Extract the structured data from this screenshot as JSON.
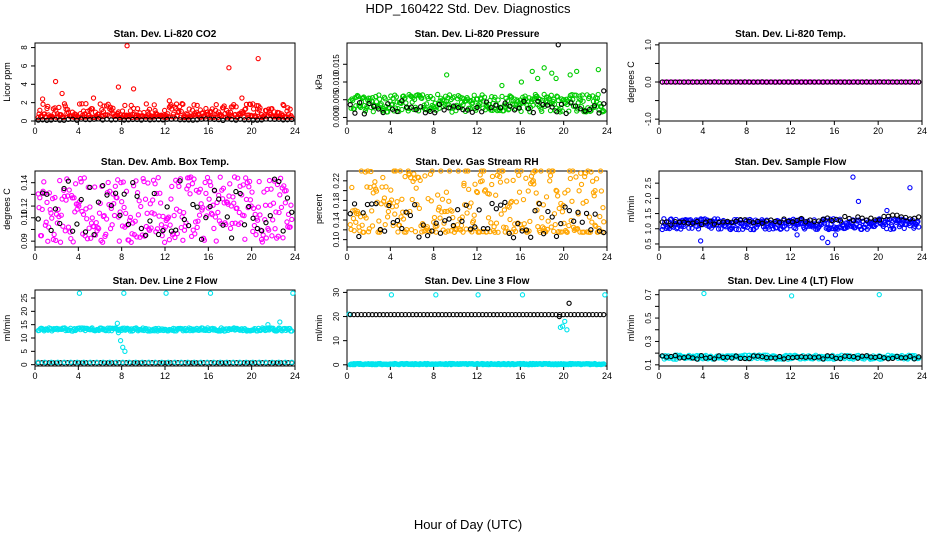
{
  "page": {
    "title": "HDP_160422  Std. Dev. Diagnostics",
    "xlabel": "Hour of Day (UTC)"
  },
  "chart_data": [
    {
      "type": "scatter",
      "title": "Stan. Dev. Li-820 CO2",
      "ylabel": "Licor ppm",
      "xlim": [
        0,
        24
      ],
      "ylim": [
        0,
        8.5
      ],
      "xticks": [
        0,
        4,
        8,
        12,
        16,
        20,
        24
      ],
      "yticks": [
        0,
        2,
        4,
        6,
        8
      ],
      "ytick_labels": [
        "0",
        "2",
        "4",
        "6",
        "8"
      ],
      "series": [
        {
          "color": "#ff0000",
          "base": 0.6,
          "noise": 0.5,
          "mode": "skewed",
          "count": 320,
          "points": [
            [
              1.9,
              4.3
            ],
            [
              8.5,
              8.2
            ],
            [
              17.9,
              5.8
            ],
            [
              20.6,
              6.8
            ],
            [
              0.7,
              2.4
            ],
            [
              2.5,
              3.0
            ],
            [
              9.1,
              3.5
            ],
            [
              12.4,
              2.2
            ],
            [
              19.1,
              2.5
            ],
            [
              22.9,
              1.8
            ],
            [
              7.7,
              3.7
            ],
            [
              5.4,
              2.5
            ]
          ]
        },
        {
          "color": "#000000",
          "base": 0.15,
          "noise": 0.08,
          "mode": "uniform",
          "count": 60,
          "points": []
        }
      ]
    },
    {
      "type": "scatter",
      "title": "Stan. Dev. Li-820 Pressure",
      "ylabel": "kPa",
      "xlim": [
        0,
        24
      ],
      "ylim": [
        -0.001,
        0.021
      ],
      "xticks": [
        0,
        4,
        8,
        12,
        16,
        20,
        24
      ],
      "yticks": [
        0,
        0.005,
        0.01,
        0.015
      ],
      "ytick_labels": [
        "0.000",
        "0.005",
        "0.010",
        "0.015"
      ],
      "series": [
        {
          "color": "#00cc00",
          "base": 0.004,
          "noise": 0.0025,
          "mode": "uniform",
          "count": 320,
          "points": [
            [
              17.1,
              0.013
            ],
            [
              17.6,
              0.011
            ],
            [
              18.2,
              0.014
            ],
            [
              18.9,
              0.0125
            ],
            [
              21.2,
              0.013
            ],
            [
              23.2,
              0.0135
            ],
            [
              9.2,
              0.012
            ],
            [
              14.3,
              0.009
            ],
            [
              19.3,
              0.011
            ],
            [
              20.6,
              0.012
            ],
            [
              16.1,
              0.01
            ]
          ]
        },
        {
          "color": "#000000",
          "base": 0.003,
          "noise": 0.002,
          "mode": "uniform",
          "count": 55,
          "points": [
            [
              19.5,
              0.0205
            ],
            [
              23.7,
              0.0075
            ]
          ]
        }
      ]
    },
    {
      "type": "scatter",
      "title": "Stan. Dev. Li-820 Temp.",
      "ylabel": "degrees C",
      "xlim": [
        0,
        24
      ],
      "ylim": [
        -1.05,
        1.05
      ],
      "xticks": [
        0,
        4,
        8,
        12,
        16,
        20,
        24
      ],
      "yticks": [
        -1,
        -0.5,
        0,
        0.5,
        1
      ],
      "ytick_labels": [
        "-1.0",
        "",
        "0.0",
        "",
        "1.0"
      ],
      "series": [
        {
          "color": "#ff00ff",
          "base": 0,
          "noise": 0,
          "mode": "line",
          "count": 120,
          "points": []
        },
        {
          "color": "#000000",
          "base": 0,
          "noise": 0,
          "mode": "line",
          "count": 60,
          "points": []
        }
      ]
    },
    {
      "type": "scatter",
      "title": "Stan. Dev. Amb. Box Temp.",
      "ylabel": "degrees C",
      "xlim": [
        0,
        24
      ],
      "ylim": [
        0.085,
        0.15
      ],
      "xticks": [
        0,
        4,
        8,
        12,
        16,
        20,
        24
      ],
      "yticks": [
        0.09,
        0.1,
        0.11,
        0.12,
        0.13,
        0.14
      ],
      "ytick_labels": [
        "0.09",
        "",
        "0.11",
        "0.12",
        "",
        "0.14"
      ],
      "series": [
        {
          "color": "#ff00ff",
          "base": 0.117,
          "noise": 0.028,
          "mode": "uniform",
          "count": 320,
          "points": []
        },
        {
          "color": "#000000",
          "base": 0.117,
          "noise": 0.026,
          "mode": "uniform",
          "count": 60,
          "points": []
        }
      ]
    },
    {
      "type": "scatter",
      "title": "Stan. Dev. Gas Stream RH",
      "ylabel": "percent",
      "xlim": [
        0,
        24
      ],
      "ylim": [
        0.085,
        0.24
      ],
      "xticks": [
        0,
        4,
        8,
        12,
        16,
        20,
        24
      ],
      "yticks": [
        0.1,
        0.12,
        0.14,
        0.16,
        0.18,
        0.2,
        0.22
      ],
      "ytick_labels": [
        "0.10",
        "",
        "0.14",
        "",
        "0.18",
        "",
        "0.22"
      ],
      "series": [
        {
          "color": "#ffa500",
          "base": 0.135,
          "noise": 0.05,
          "mode": "skewed",
          "count": 320,
          "points": [
            [
              5.7,
              0.232
            ],
            [
              12.3,
              0.232
            ],
            [
              17.2,
              0.22
            ],
            [
              10.8,
              0.215
            ],
            [
              22.9,
              0.2
            ]
          ]
        },
        {
          "color": "#000000",
          "base": 0.14,
          "noise": 0.04,
          "mode": "uniform",
          "count": 60,
          "points": []
        }
      ]
    },
    {
      "type": "scatter",
      "title": "Stan. Dev. Sample Flow",
      "ylabel": "ml/min",
      "xlim": [
        0,
        24
      ],
      "ylim": [
        0.4,
        2.9
      ],
      "xticks": [
        0,
        4,
        8,
        12,
        16,
        20,
        24
      ],
      "yticks": [
        0.5,
        1,
        1.5,
        2,
        2.5
      ],
      "ytick_labels": [
        "0.5",
        "1.0",
        "1.5",
        "2.0",
        "2.5"
      ],
      "series": [
        {
          "color": "#0000ff",
          "base": 1.15,
          "noise": 0.18,
          "mode": "uniform",
          "count": 320,
          "points": [
            [
              17.7,
              2.7
            ],
            [
              22.9,
              2.35
            ],
            [
              3.8,
              0.6
            ],
            [
              15.4,
              0.55
            ],
            [
              16.1,
              0.8
            ],
            [
              14.9,
              0.7
            ],
            [
              18.2,
              1.9
            ],
            [
              20.8,
              1.6
            ],
            [
              12.6,
              0.8
            ]
          ]
        },
        {
          "color": "#000000",
          "base": 1.15,
          "noise": 0.08,
          "mode": "trend",
          "count": 60,
          "points": []
        }
      ]
    },
    {
      "type": "scatter",
      "title": "Stan. Dev. Line 2 Flow",
      "ylabel": "ml/min",
      "xlim": [
        0,
        24
      ],
      "ylim": [
        -0.5,
        28
      ],
      "xticks": [
        0,
        4,
        8,
        12,
        16,
        20,
        24
      ],
      "yticks": [
        0,
        5,
        10,
        15,
        20,
        25
      ],
      "ytick_labels": [
        "0",
        "5",
        "10",
        "15",
        "20",
        "25"
      ],
      "series": [
        {
          "color": "#00e5ee",
          "base": 13.2,
          "noise": 0.6,
          "mode": "uniform",
          "count": 260,
          "points": [
            [
              4.1,
              26.8
            ],
            [
              8.2,
              26.8
            ],
            [
              12.1,
              26.8
            ],
            [
              16.2,
              26.8
            ],
            [
              23.8,
              26.8
            ],
            [
              7.7,
              12
            ],
            [
              7.9,
              9
            ],
            [
              8.1,
              6.5
            ],
            [
              8.3,
              5
            ],
            [
              7.6,
              15.5
            ],
            [
              21.5,
              15
            ],
            [
              22.6,
              16
            ]
          ]
        },
        {
          "color": "#000000",
          "base": 0.7,
          "noise": 0,
          "mode": "line",
          "count": 70,
          "points": []
        },
        {
          "color": "#00e5ee",
          "base": 0.9,
          "noise": 0,
          "mode": "line",
          "count": 40,
          "points": []
        }
      ]
    },
    {
      "type": "scatter",
      "title": "Stan. Dev. Line 3 Flow",
      "ylabel": "ml/min",
      "xlim": [
        0,
        24
      ],
      "ylim": [
        -0.5,
        31
      ],
      "xticks": [
        0,
        4,
        8,
        12,
        16,
        20,
        24
      ],
      "yticks": [
        0,
        10,
        20,
        30
      ],
      "ytick_labels": [
        "0",
        "10",
        "20",
        "30"
      ],
      "series": [
        {
          "color": "#00e5ee",
          "base": 0.3,
          "noise": 0.25,
          "mode": "uniform",
          "count": 280,
          "points": [
            [
              4.1,
              29
            ],
            [
              8.2,
              29
            ],
            [
              12.1,
              29
            ],
            [
              16.2,
              29
            ],
            [
              23.8,
              29
            ],
            [
              0.2,
              21
            ],
            [
              19.9,
              16
            ],
            [
              20.1,
              18
            ],
            [
              20.3,
              14.5
            ],
            [
              19.7,
              15.5
            ]
          ]
        },
        {
          "color": "#000000",
          "base": 20.8,
          "noise": 0.4,
          "mode": "line",
          "count": 70,
          "points": [
            [
              20.5,
              25.5
            ],
            [
              19.6,
              20
            ]
          ]
        }
      ]
    },
    {
      "type": "scatter",
      "title": "Stan. Dev. Line 4 (LT) Flow",
      "ylabel": "ml/min",
      "xlim": [
        0,
        24
      ],
      "ylim": [
        0.09,
        0.74
      ],
      "xticks": [
        0,
        4,
        8,
        12,
        16,
        20,
        24
      ],
      "yticks": [
        0.1,
        0.2,
        0.3,
        0.4,
        0.5,
        0.6,
        0.7
      ],
      "ytick_labels": [
        "0.1",
        "",
        "0.3",
        "",
        "0.5",
        "",
        "0.7"
      ],
      "series": [
        {
          "color": "#00e5ee",
          "base": 0.165,
          "noise": 0.018,
          "mode": "uniform",
          "count": 260,
          "points": [
            [
              4.1,
              0.71
            ],
            [
              12.1,
              0.69
            ],
            [
              20.1,
              0.7
            ]
          ]
        },
        {
          "color": "#000000",
          "base": 0.165,
          "noise": 0.015,
          "mode": "uniform",
          "count": 60,
          "points": []
        }
      ]
    }
  ]
}
